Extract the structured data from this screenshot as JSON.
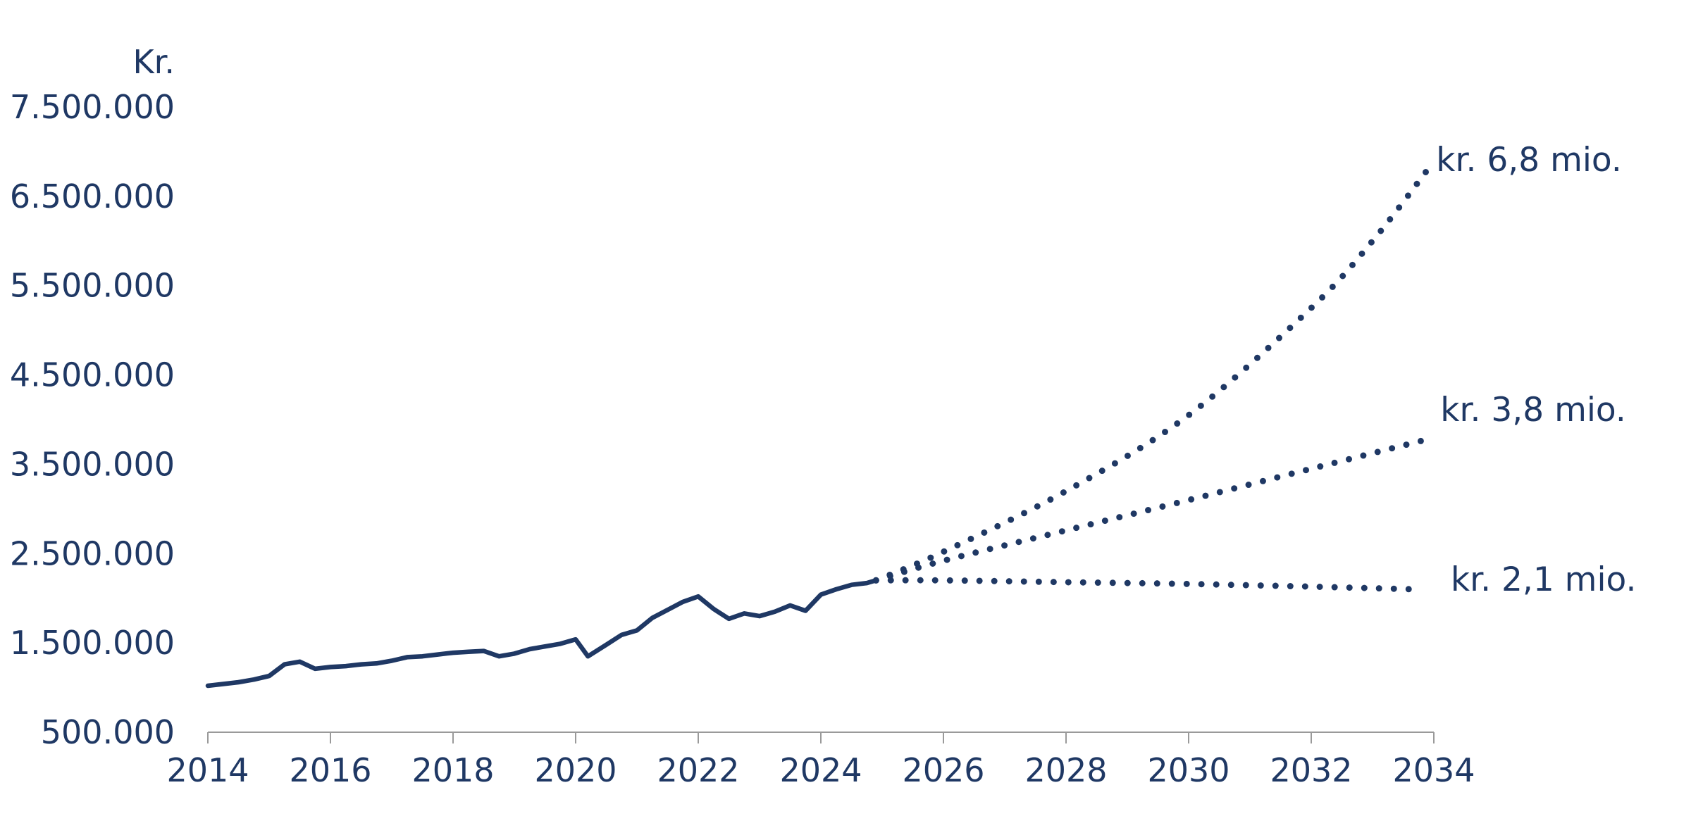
{
  "colors": {
    "series": "#1f3864",
    "axis": "#9a9a9a",
    "background": "#ffffff"
  },
  "chart_data": {
    "type": "line",
    "title": "",
    "ylabel": "Kr.",
    "xlabel": "",
    "xlim": [
      2014,
      2034
    ],
    "ylim": [
      500000,
      7500000
    ],
    "grid": false,
    "legend": "none",
    "x_ticks": [
      "2014",
      "2016",
      "2018",
      "2020",
      "2022",
      "2024",
      "2026",
      "2028",
      "2030",
      "2032",
      "2034"
    ],
    "y_ticks": [
      "500.000",
      "1.500.000",
      "2.500.000",
      "3.500.000",
      "4.500.000",
      "5.500.000",
      "6.500.000",
      "7.500.000"
    ],
    "series": [
      {
        "style": "solid",
        "points": [
          [
            2014.0,
            1020000
          ],
          [
            2014.25,
            1040000
          ],
          [
            2014.5,
            1060000
          ],
          [
            2014.75,
            1090000
          ],
          [
            2015.0,
            1130000
          ],
          [
            2015.25,
            1260000
          ],
          [
            2015.5,
            1290000
          ],
          [
            2015.75,
            1210000
          ],
          [
            2016.0,
            1230000
          ],
          [
            2016.25,
            1240000
          ],
          [
            2016.5,
            1260000
          ],
          [
            2016.75,
            1270000
          ],
          [
            2017.0,
            1300000
          ],
          [
            2017.25,
            1340000
          ],
          [
            2017.5,
            1350000
          ],
          [
            2017.75,
            1370000
          ],
          [
            2018.0,
            1390000
          ],
          [
            2018.25,
            1400000
          ],
          [
            2018.5,
            1410000
          ],
          [
            2018.75,
            1350000
          ],
          [
            2019.0,
            1380000
          ],
          [
            2019.25,
            1430000
          ],
          [
            2019.5,
            1460000
          ],
          [
            2019.75,
            1490000
          ],
          [
            2020.0,
            1540000
          ],
          [
            2020.2,
            1350000
          ],
          [
            2020.5,
            1480000
          ],
          [
            2020.75,
            1590000
          ],
          [
            2021.0,
            1640000
          ],
          [
            2021.25,
            1780000
          ],
          [
            2021.5,
            1870000
          ],
          [
            2021.75,
            1960000
          ],
          [
            2022.0,
            2020000
          ],
          [
            2022.25,
            1880000
          ],
          [
            2022.5,
            1770000
          ],
          [
            2022.75,
            1830000
          ],
          [
            2023.0,
            1800000
          ],
          [
            2023.25,
            1850000
          ],
          [
            2023.5,
            1920000
          ],
          [
            2023.75,
            1860000
          ],
          [
            2024.0,
            2040000
          ],
          [
            2024.25,
            2100000
          ],
          [
            2024.5,
            2150000
          ],
          [
            2024.75,
            2170000
          ],
          [
            2024.9,
            2200000
          ]
        ]
      },
      {
        "style": "dotted",
        "label": "kr. 6,8 mio.",
        "points": [
          [
            2024.9,
            2200000
          ],
          [
            2026,
            2520000
          ],
          [
            2028,
            3200000
          ],
          [
            2030,
            4050000
          ],
          [
            2032,
            5250000
          ],
          [
            2033,
            6000000
          ],
          [
            2033.9,
            6800000
          ]
        ]
      },
      {
        "style": "dotted",
        "label": "kr. 3,8 mio.",
        "points": [
          [
            2024.9,
            2200000
          ],
          [
            2026,
            2420000
          ],
          [
            2028,
            2760000
          ],
          [
            2030,
            3100000
          ],
          [
            2032,
            3450000
          ],
          [
            2033.9,
            3780000
          ]
        ]
      },
      {
        "style": "dotted",
        "label": "kr. 2,1 mio.",
        "points": [
          [
            2024.9,
            2200000
          ],
          [
            2026,
            2200000
          ],
          [
            2028,
            2180000
          ],
          [
            2030,
            2160000
          ],
          [
            2032,
            2130000
          ],
          [
            2033.7,
            2100000
          ]
        ]
      }
    ]
  }
}
